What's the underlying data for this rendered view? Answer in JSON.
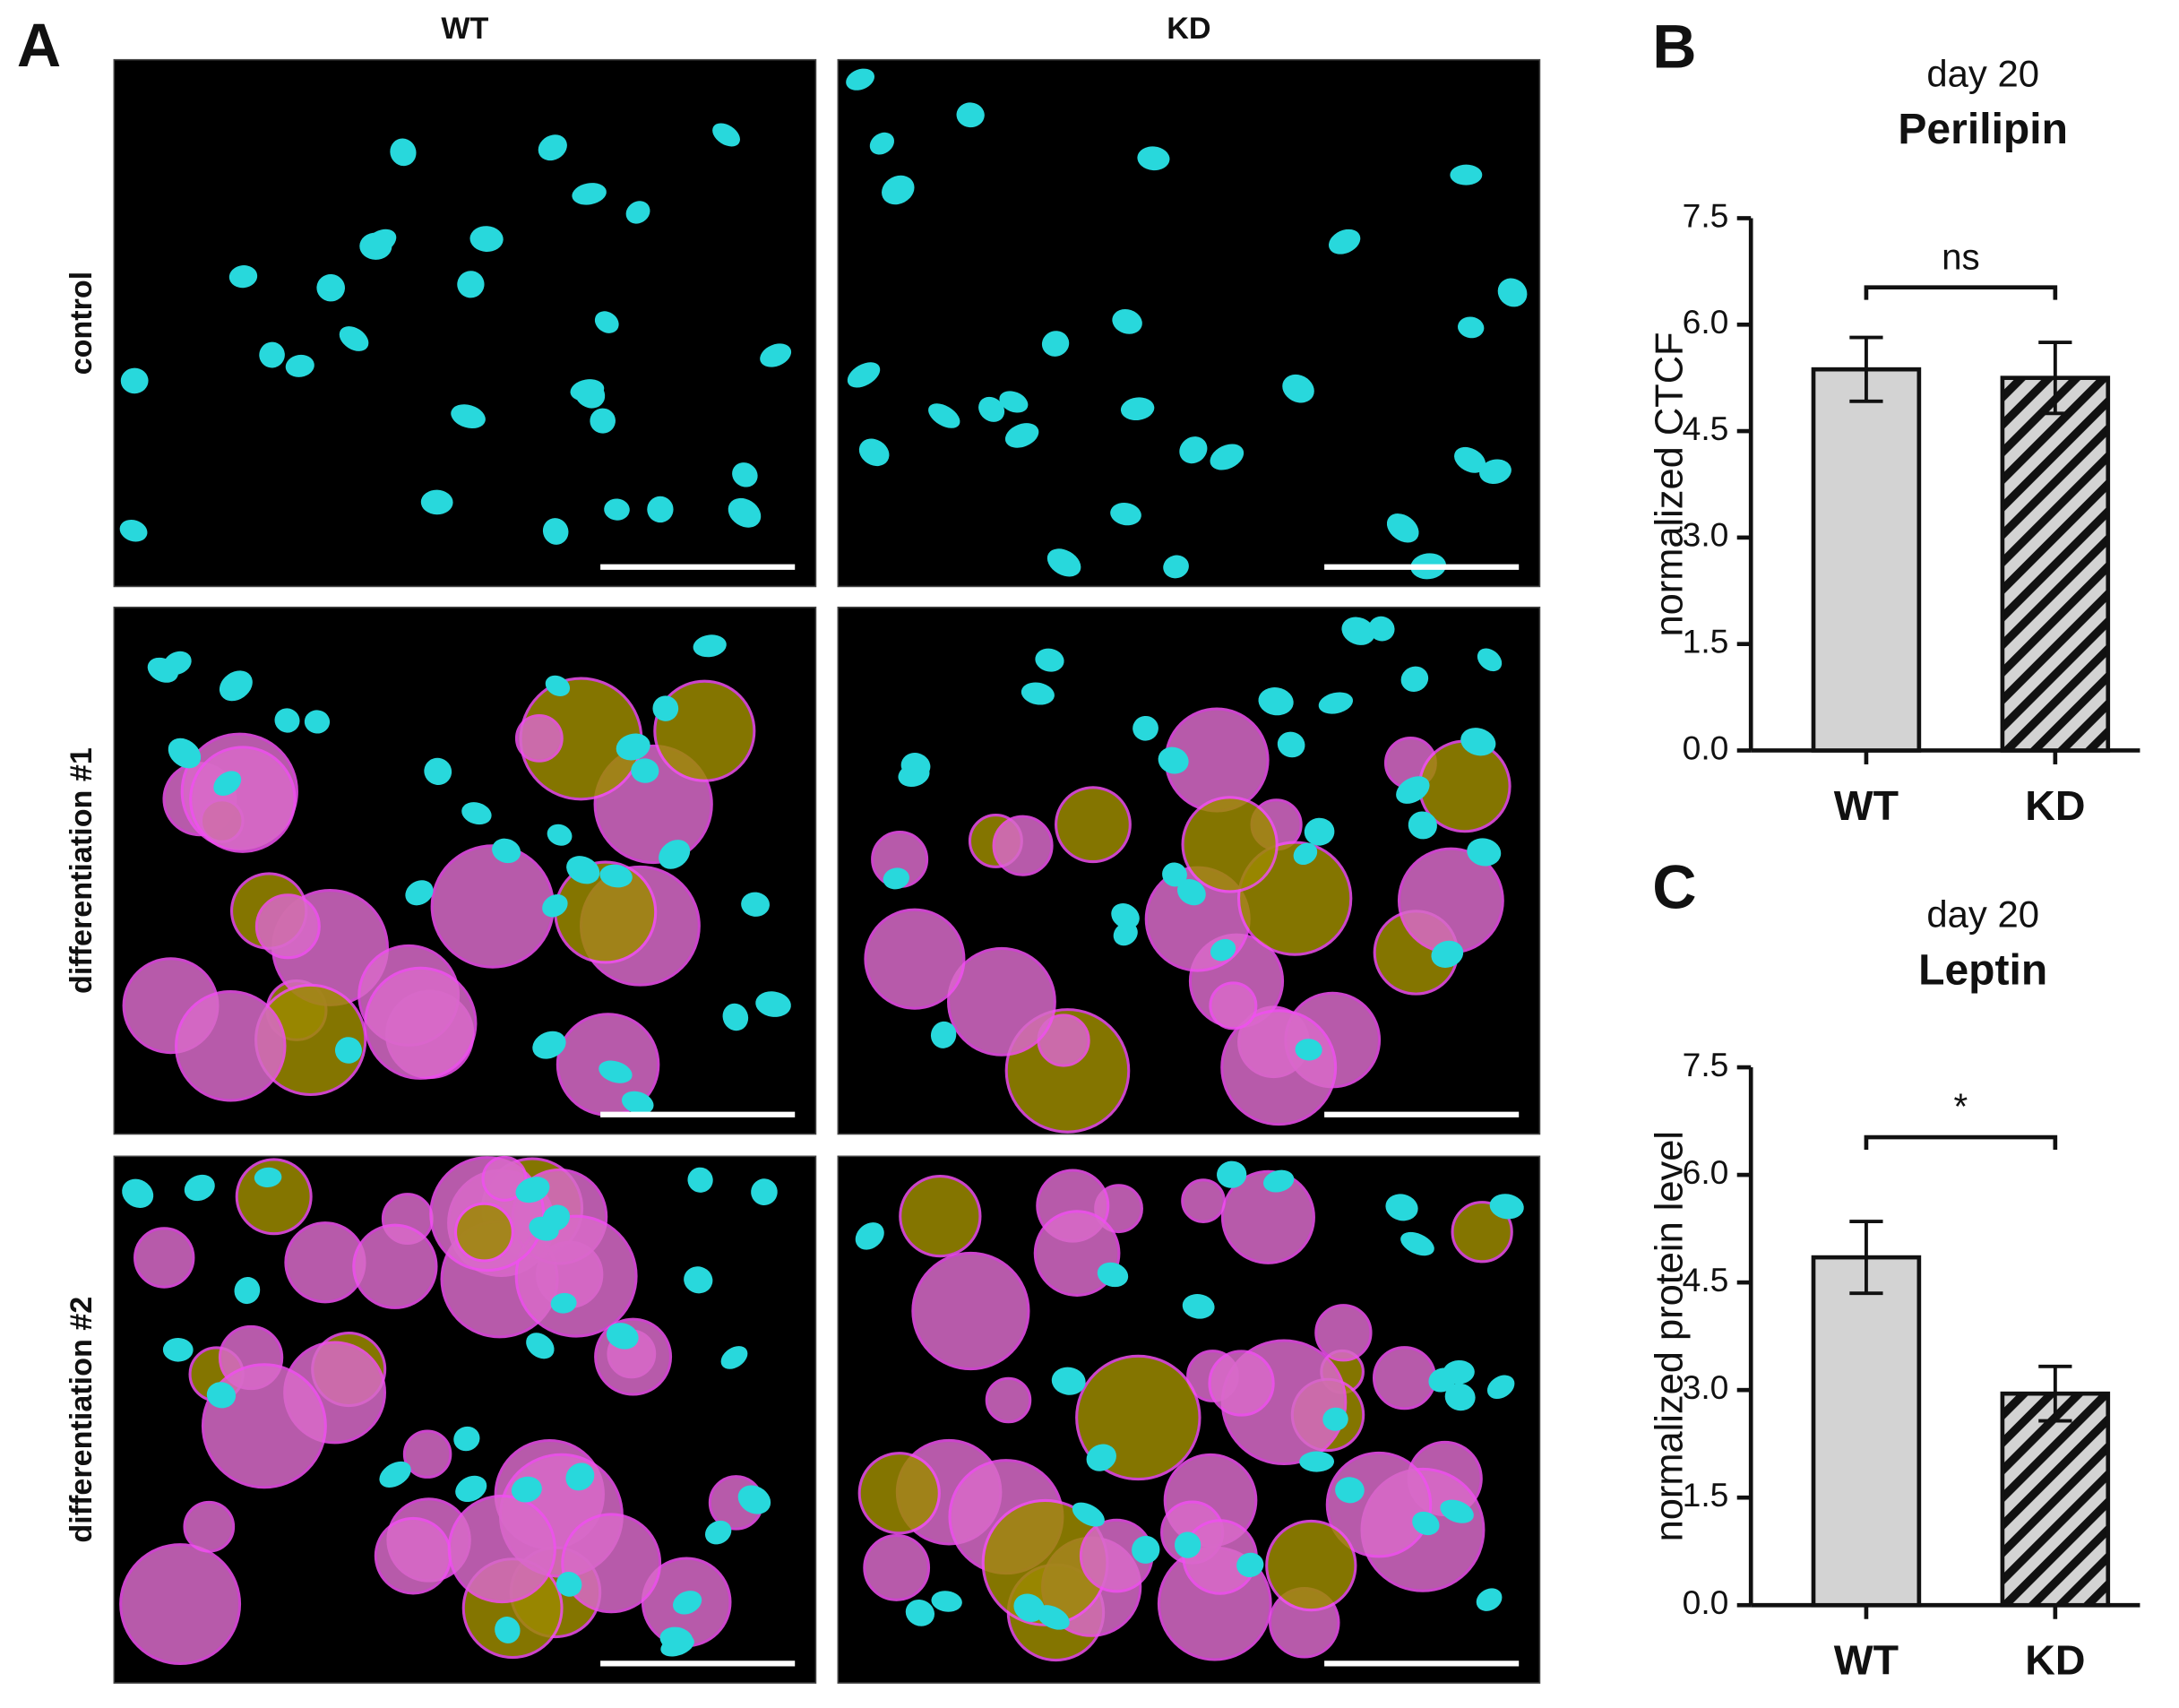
{
  "panel_a": {
    "label": "A",
    "columns": [
      "WT",
      "KD"
    ],
    "rows": [
      "control",
      "differentiation #1",
      "differentiation #2"
    ]
  },
  "chart_data": [
    {
      "type": "bar",
      "panel_label": "B",
      "subtitle": "day 20",
      "title": "Perilipin",
      "ylabel": "normalized CTCF",
      "categories": [
        "WT",
        "KD"
      ],
      "values": [
        5.37,
        5.25
      ],
      "errors": [
        0.45,
        0.5
      ],
      "colors": [
        "#d3d3d3",
        "#d3d3d3"
      ],
      "patterns": [
        "solid",
        "hatch"
      ],
      "annotation": "ns",
      "ylim": [
        0,
        7.5
      ],
      "yticks": [
        {
          "value": 0,
          "label": "0.0"
        },
        {
          "value": 1.5,
          "label": "1.5"
        },
        {
          "value": 3,
          "label": "3.0"
        },
        {
          "value": 4.5,
          "label": "4.5"
        },
        {
          "value": 6,
          "label": "6.0"
        },
        {
          "value": 7.5,
          "label": "7.5"
        }
      ]
    },
    {
      "type": "bar",
      "panel_label": "C",
      "subtitle": "day 20",
      "title": "Leptin",
      "ylabel": "normalized protein level",
      "categories": [
        "WT",
        "KD"
      ],
      "values": [
        4.85,
        2.95
      ],
      "errors": [
        0.5,
        0.38
      ],
      "colors": [
        "#d3d3d3",
        "#d3d3d3"
      ],
      "patterns": [
        "solid",
        "hatch"
      ],
      "annotation": "*",
      "ylim": [
        0,
        7.5
      ],
      "yticks": [
        {
          "value": 0,
          "label": "0.0"
        },
        {
          "value": 1.5,
          "label": "1.5"
        },
        {
          "value": 3,
          "label": "3.0"
        },
        {
          "value": 4.5,
          "label": "4.5"
        },
        {
          "value": 6,
          "label": "6.0"
        },
        {
          "value": 7.5,
          "label": "7.5"
        }
      ]
    }
  ]
}
